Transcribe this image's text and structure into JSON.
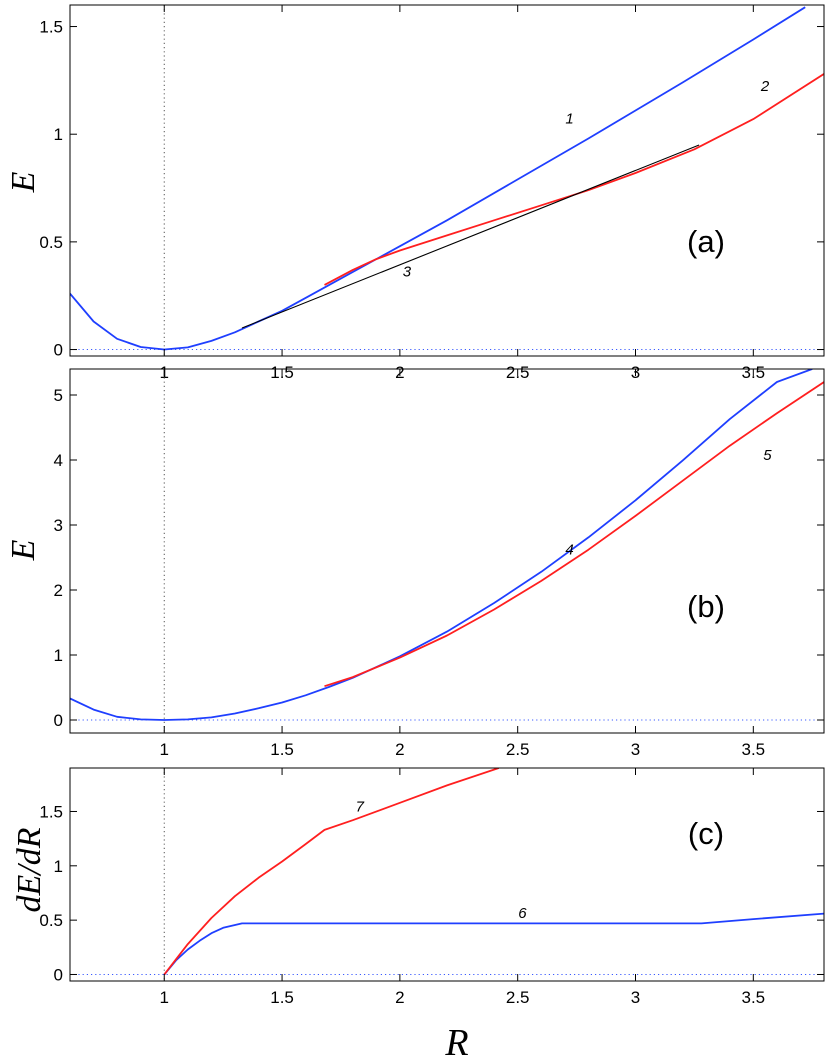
{
  "chart_data": [
    {
      "type": "line",
      "panel_label": "(a)",
      "ylabel": "E",
      "xlabel": "",
      "xlim": [
        0.6,
        3.8
      ],
      "ylim": [
        -0.03,
        1.6
      ],
      "xticks": [
        1,
        1.5,
        2,
        2.5,
        3,
        3.5
      ],
      "xtick_labels": [
        "1",
        "1.5",
        "2",
        "2.5",
        "3",
        "3.5"
      ],
      "yticks": [
        0,
        0.5,
        1,
        1.5
      ],
      "ytick_labels": [
        "0",
        "0.5",
        "1",
        "1.5"
      ],
      "ref_lines": {
        "vline_x": 1,
        "hline_y": 0
      },
      "series": [
        {
          "name": "1",
          "color": "#1f3fff",
          "label_at": [
            2.72,
            1.05
          ],
          "x": [
            0.6,
            0.7,
            0.8,
            0.9,
            1.0,
            1.1,
            1.2,
            1.3,
            1.4,
            1.5,
            1.6,
            1.7,
            1.8,
            2.0,
            2.2,
            2.5,
            2.8,
            3.0,
            3.2,
            3.5,
            3.72
          ],
          "y": [
            0.26,
            0.13,
            0.05,
            0.012,
            0.0,
            0.01,
            0.04,
            0.08,
            0.13,
            0.18,
            0.24,
            0.3,
            0.36,
            0.48,
            0.6,
            0.79,
            0.98,
            1.11,
            1.24,
            1.44,
            1.59
          ]
        },
        {
          "name": "2",
          "color": "#ff1f1f",
          "label_at": [
            3.55,
            1.2
          ],
          "x": [
            1.68,
            1.8,
            1.9,
            2.0,
            2.2,
            2.4,
            2.6,
            2.8,
            3.0,
            3.25,
            3.5,
            3.8
          ],
          "y": [
            0.3,
            0.37,
            0.42,
            0.46,
            0.53,
            0.6,
            0.67,
            0.74,
            0.82,
            0.93,
            1.07,
            1.28
          ]
        },
        {
          "name": "3",
          "color": "#000000",
          "label_at": [
            2.03,
            0.34
          ],
          "x": [
            1.33,
            3.27
          ],
          "y": [
            0.1,
            0.95
          ]
        }
      ]
    },
    {
      "type": "line",
      "panel_label": "(b)",
      "ylabel": "E",
      "xlabel": "",
      "xlim": [
        0.6,
        3.8
      ],
      "ylim": [
        -0.2,
        5.4
      ],
      "xticks": [
        1,
        1.5,
        2,
        2.5,
        3,
        3.5
      ],
      "xtick_labels": [
        "1",
        "1.5",
        "2",
        "2.5",
        "3",
        "3.5"
      ],
      "yticks": [
        0,
        1,
        2,
        3,
        4,
        5
      ],
      "ytick_labels": [
        "0",
        "1",
        "2",
        "3",
        "4",
        "5"
      ],
      "ref_lines": {
        "vline_x": 1,
        "hline_y": 0
      },
      "series": [
        {
          "name": "4",
          "color": "#1f3fff",
          "label_at": [
            2.72,
            2.55
          ],
          "x": [
            0.6,
            0.7,
            0.8,
            0.9,
            1.0,
            1.1,
            1.2,
            1.3,
            1.4,
            1.5,
            1.6,
            1.7,
            1.8,
            2.0,
            2.2,
            2.4,
            2.6,
            2.8,
            3.0,
            3.2,
            3.4,
            3.6,
            3.75
          ],
          "y": [
            0.33,
            0.16,
            0.05,
            0.01,
            0.0,
            0.01,
            0.04,
            0.1,
            0.18,
            0.27,
            0.38,
            0.51,
            0.65,
            0.98,
            1.36,
            1.8,
            2.28,
            2.81,
            3.38,
            3.99,
            4.63,
            5.2,
            5.4
          ]
        },
        {
          "name": "5",
          "color": "#ff1f1f",
          "label_at": [
            3.56,
            4.0
          ],
          "x": [
            1.68,
            1.8,
            2.0,
            2.2,
            2.4,
            2.6,
            2.8,
            3.0,
            3.2,
            3.4,
            3.6,
            3.8
          ],
          "y": [
            0.52,
            0.66,
            0.96,
            1.3,
            1.7,
            2.14,
            2.62,
            3.14,
            3.68,
            4.22,
            4.72,
            5.2
          ]
        }
      ]
    },
    {
      "type": "line",
      "panel_label": "(c)",
      "ylabel": "dE/dR",
      "xlabel": "R",
      "xlim": [
        0.6,
        3.8
      ],
      "ylim": [
        -0.06,
        1.9
      ],
      "xticks": [
        1,
        1.5,
        2,
        2.5,
        3,
        3.5
      ],
      "xtick_labels": [
        "1",
        "1.5",
        "2",
        "2.5",
        "3",
        "3.5"
      ],
      "yticks": [
        0,
        0.5,
        1,
        1.5
      ],
      "ytick_labels": [
        "0",
        "0.5",
        "1",
        "1.5"
      ],
      "ref_lines": {
        "vline_x": 1,
        "hline_y": 0
      },
      "series": [
        {
          "name": "6",
          "color": "#1f3fff",
          "label_at": [
            2.52,
            0.52
          ],
          "x": [
            1.0,
            1.05,
            1.1,
            1.15,
            1.2,
            1.25,
            1.33,
            2.0,
            3.0,
            3.28,
            3.5,
            3.8
          ],
          "y": [
            0.0,
            0.13,
            0.23,
            0.31,
            0.38,
            0.43,
            0.47,
            0.47,
            0.47,
            0.47,
            0.51,
            0.56
          ]
        },
        {
          "name": "7",
          "color": "#ff1f1f",
          "label_at": [
            1.83,
            1.5
          ],
          "x": [
            1.0,
            1.05,
            1.1,
            1.2,
            1.3,
            1.4,
            1.5,
            1.6,
            1.68,
            1.8,
            2.0,
            2.2,
            2.42
          ],
          "y": [
            0.0,
            0.14,
            0.28,
            0.52,
            0.72,
            0.89,
            1.04,
            1.2,
            1.33,
            1.42,
            1.58,
            1.74,
            1.9
          ]
        }
      ]
    }
  ]
}
